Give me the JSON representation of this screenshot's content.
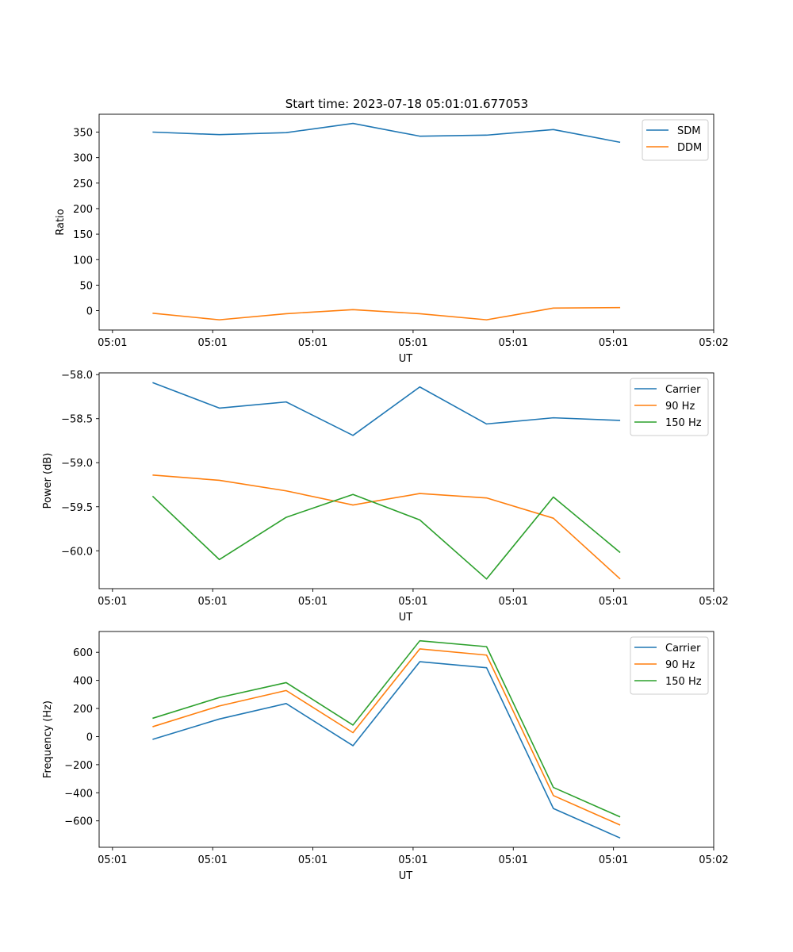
{
  "figure": {
    "title": "Start time: 2023-07-18 05:01:01.677053"
  },
  "colors": {
    "blue": "#1f77b4",
    "orange": "#ff7f0e",
    "green": "#2ca02c"
  },
  "chart_data": [
    {
      "type": "line",
      "title": "Start time: 2023-07-18 05:01:01.677053",
      "xlabel": "UT",
      "ylabel": "Ratio",
      "x": [
        1,
        2,
        3,
        4,
        5,
        6,
        7,
        8
      ],
      "xlim": [
        0.2,
        9.4
      ],
      "xticks": [
        0.4,
        1.9,
        3.4,
        4.9,
        6.4,
        7.9,
        9.4
      ],
      "xtick_labels": [
        "05:01",
        "05:01",
        "05:01",
        "05:01",
        "05:01",
        "05:01",
        "05:02"
      ],
      "ylim": [
        -38,
        385
      ],
      "yticks": [
        0,
        50,
        100,
        150,
        200,
        250,
        300,
        350
      ],
      "ytick_labels": [
        "0",
        "50",
        "100",
        "150",
        "200",
        "250",
        "300",
        "350"
      ],
      "legend": "top-right",
      "series": [
        {
          "name": "SDM",
          "color": "#1f77b4",
          "values": [
            350,
            345,
            349,
            367,
            342,
            344,
            355,
            330
          ]
        },
        {
          "name": "DDM",
          "color": "#ff7f0e",
          "values": [
            -5,
            -18,
            -6,
            2,
            -6,
            -18,
            5,
            6
          ]
        }
      ]
    },
    {
      "type": "line",
      "title": "",
      "xlabel": "UT",
      "ylabel": "Power (dB)",
      "x": [
        1,
        2,
        3,
        4,
        5,
        6,
        7,
        8
      ],
      "xlim": [
        0.2,
        9.4
      ],
      "xticks": [
        0.4,
        1.9,
        3.4,
        4.9,
        6.4,
        7.9,
        9.4
      ],
      "xtick_labels": [
        "05:01",
        "05:01",
        "05:01",
        "05:01",
        "05:01",
        "05:01",
        "05:02"
      ],
      "ylim": [
        -60.43,
        -57.98
      ],
      "yticks": [
        -60.0,
        -59.5,
        -59.0,
        -58.5,
        -58.0
      ],
      "ytick_labels": [
        "−60.0",
        "−59.5",
        "−59.0",
        "−58.5",
        "−58.0"
      ],
      "legend": "top-right",
      "series": [
        {
          "name": "Carrier",
          "color": "#1f77b4",
          "values": [
            -58.09,
            -58.38,
            -58.31,
            -58.69,
            -58.14,
            -58.56,
            -58.49,
            -58.52
          ]
        },
        {
          "name": "90 Hz",
          "color": "#ff7f0e",
          "values": [
            -59.14,
            -59.2,
            -59.32,
            -59.48,
            -59.35,
            -59.4,
            -59.63,
            -60.32
          ]
        },
        {
          "name": "150 Hz",
          "color": "#2ca02c",
          "values": [
            -59.38,
            -60.1,
            -59.62,
            -59.36,
            -59.65,
            -60.32,
            -59.39,
            -60.02
          ]
        }
      ]
    },
    {
      "type": "line",
      "title": "",
      "xlabel": "UT",
      "ylabel": "Frequency (Hz)",
      "x": [
        1,
        2,
        3,
        4,
        5,
        6,
        7,
        8
      ],
      "xlim": [
        0.2,
        9.4
      ],
      "xticks": [
        0.4,
        1.9,
        3.4,
        4.9,
        6.4,
        7.9,
        9.4
      ],
      "xtick_labels": [
        "05:01",
        "05:01",
        "05:01",
        "05:01",
        "05:01",
        "05:01",
        "05:02"
      ],
      "ylim": [
        -788,
        748
      ],
      "yticks": [
        -600,
        -400,
        -200,
        0,
        200,
        400,
        600
      ],
      "ytick_labels": [
        "−600",
        "−400",
        "−200",
        "0",
        "200",
        "400",
        "600"
      ],
      "legend": "top-right",
      "series": [
        {
          "name": "Carrier",
          "color": "#1f77b4",
          "values": [
            -20,
            125,
            235,
            -65,
            533,
            490,
            -512,
            -722
          ]
        },
        {
          "name": "90 Hz",
          "color": "#ff7f0e",
          "values": [
            70,
            218,
            328,
            28,
            624,
            580,
            -420,
            -630
          ]
        },
        {
          "name": "150 Hz",
          "color": "#2ca02c",
          "values": [
            130,
            278,
            384,
            82,
            682,
            640,
            -362,
            -572
          ]
        }
      ]
    }
  ]
}
